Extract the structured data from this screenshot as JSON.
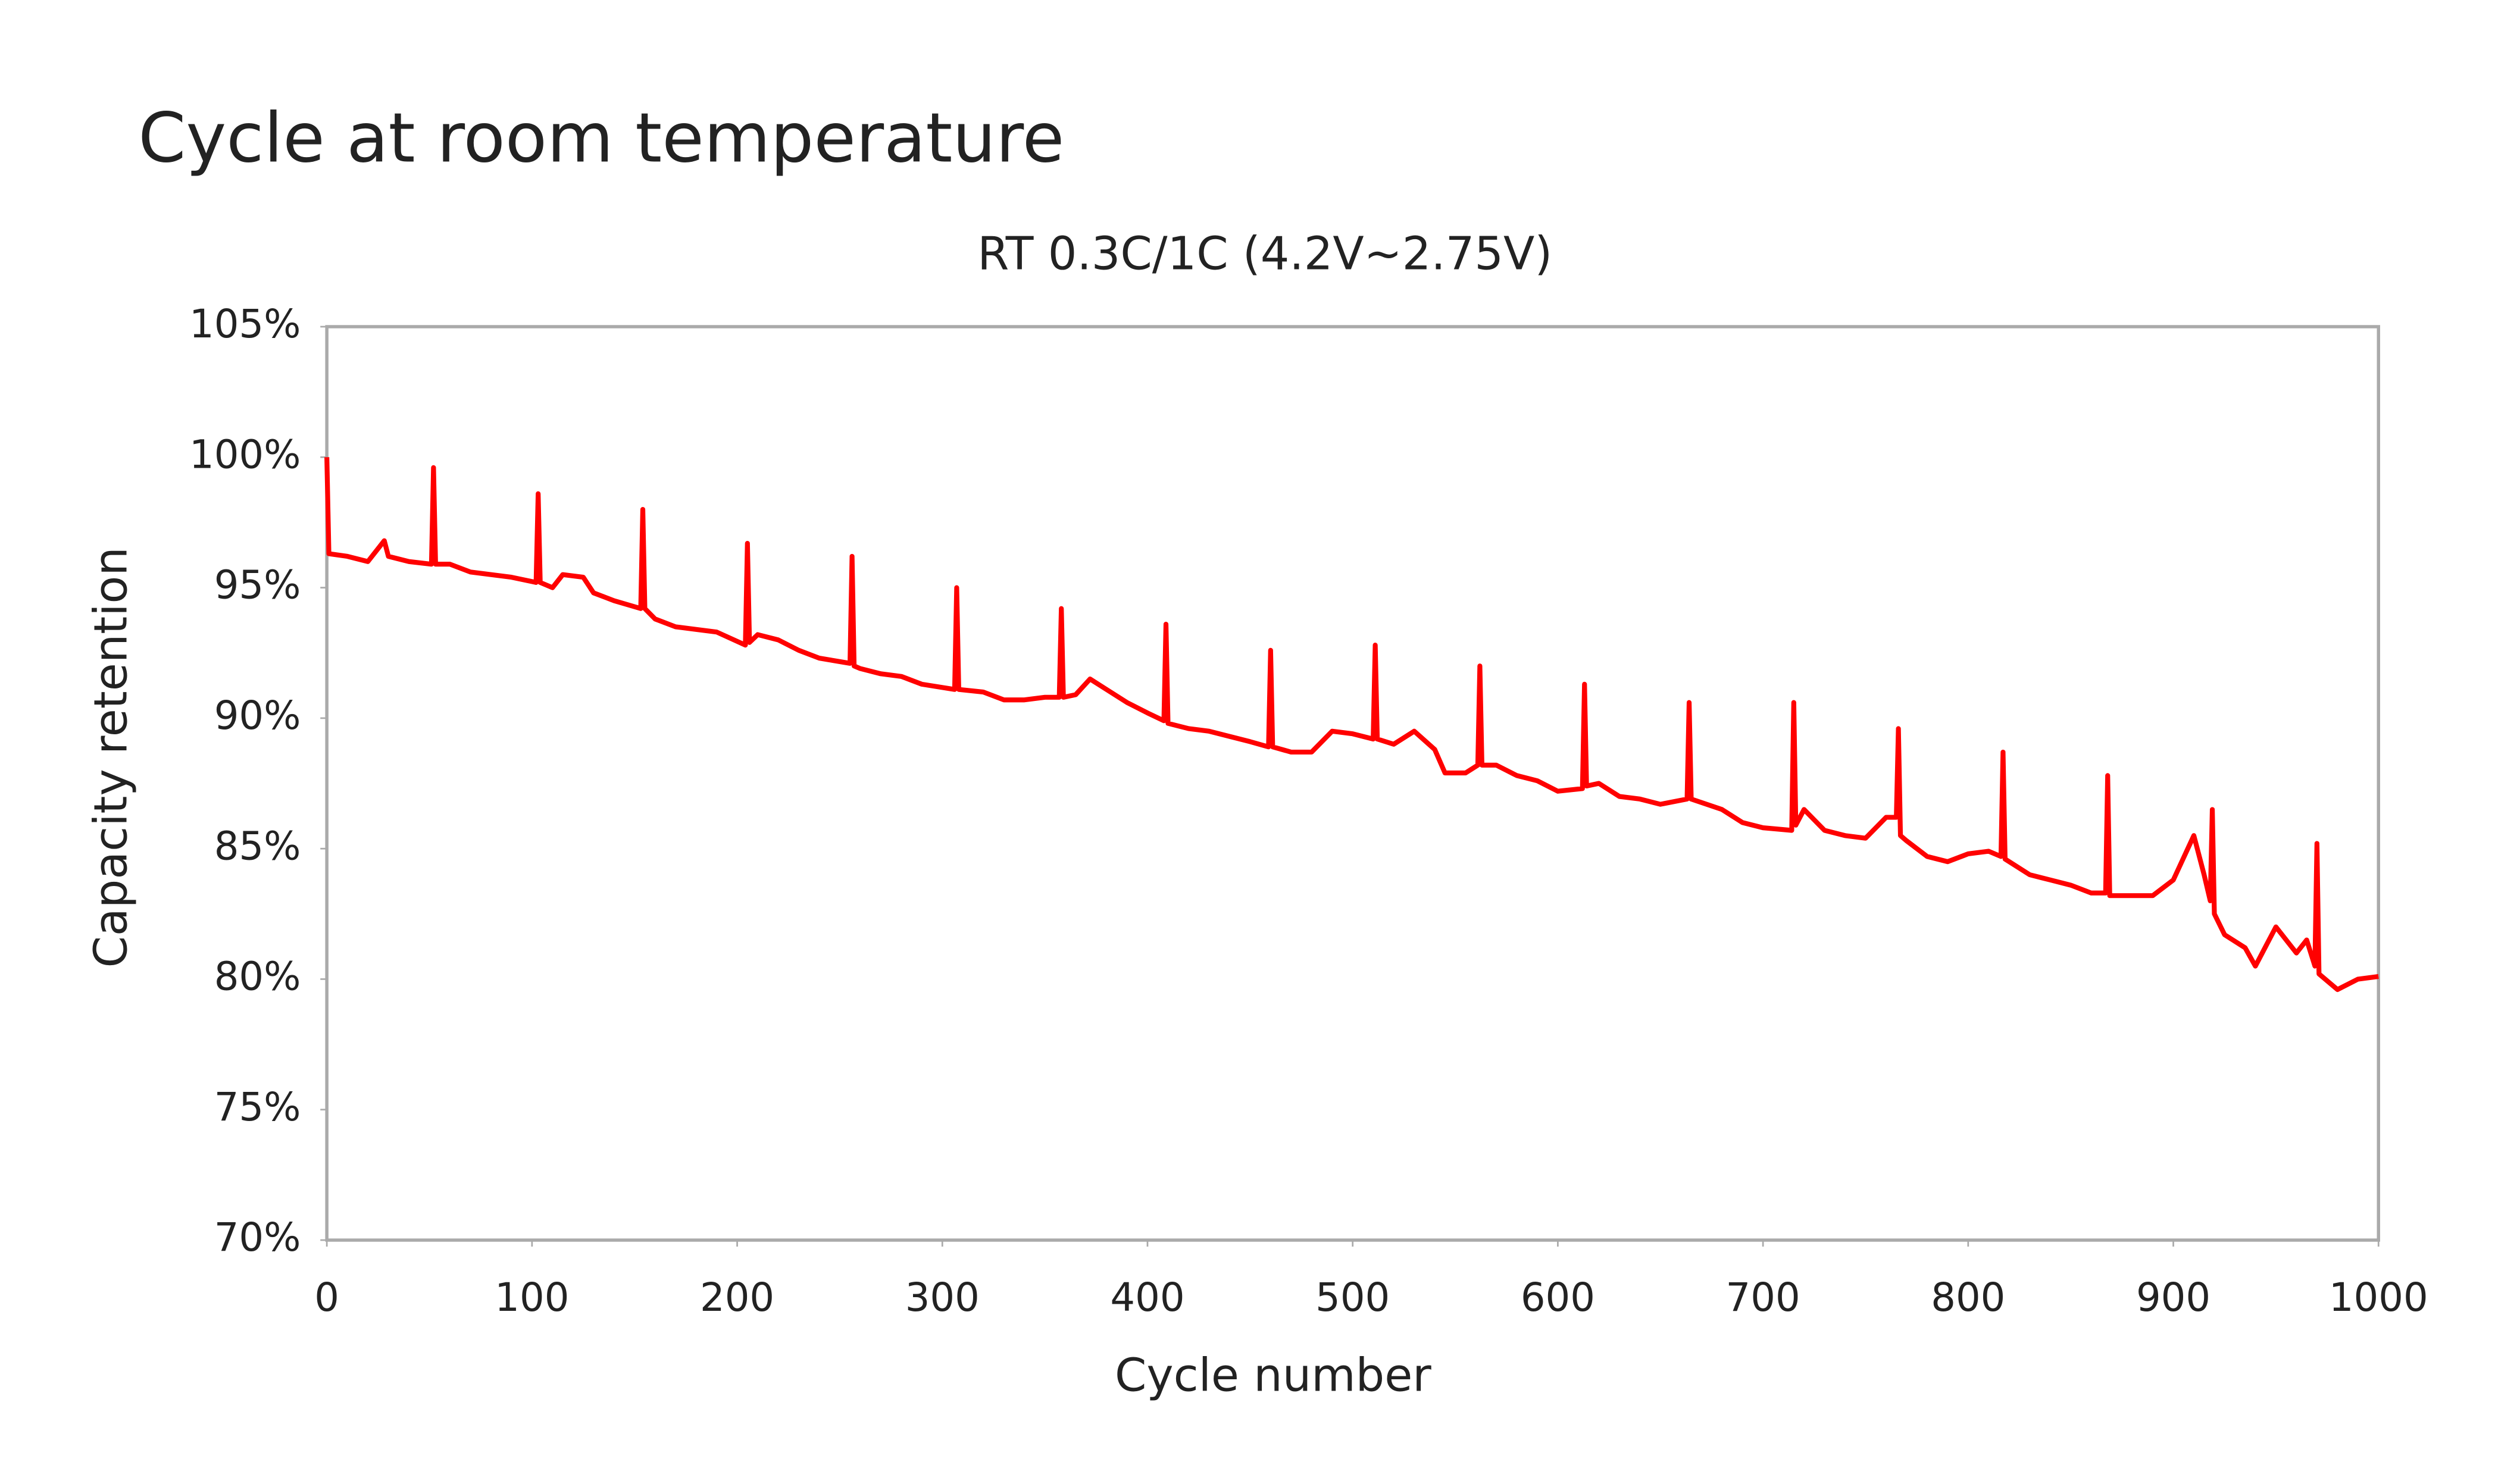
{
  "chart_data": {
    "type": "line",
    "title": "Cycle at room temperature",
    "subtitle": "RT 0.3C/1C (4.2V~2.75V)",
    "x_label": "Cycle number",
    "y_label": "Capacity retention",
    "xlim": [
      0,
      1000
    ],
    "xticks": [
      0,
      100,
      200,
      300,
      400,
      500,
      600,
      700,
      800,
      900,
      1000
    ],
    "ylim": [
      70,
      105
    ],
    "yticks": [
      {
        "value": 70,
        "label": "70%"
      },
      {
        "value": 75,
        "label": "75%"
      },
      {
        "value": 80,
        "label": "80%"
      },
      {
        "value": 85,
        "label": "85%"
      },
      {
        "value": 90,
        "label": "90%"
      },
      {
        "value": 95,
        "label": "95%"
      },
      {
        "value": 100,
        "label": "100%"
      },
      {
        "value": 105,
        "label": "105%"
      }
    ],
    "grid": false,
    "x": [
      0,
      1,
      10,
      20,
      28,
      30,
      40,
      51,
      52,
      53,
      60,
      70,
      80,
      90,
      102,
      103,
      104,
      110,
      115,
      125,
      130,
      140,
      153,
      154,
      155,
      160,
      170,
      180,
      190,
      204,
      205,
      206,
      210,
      220,
      230,
      240,
      255,
      256,
      257,
      260,
      270,
      280,
      290,
      306,
      307,
      308,
      320,
      330,
      340,
      350,
      357,
      358,
      359,
      365,
      372,
      380,
      390,
      400,
      408,
      409,
      410,
      420,
      430,
      440,
      450,
      459,
      460,
      461,
      470,
      480,
      490,
      500,
      510,
      511,
      512,
      520,
      530,
      540,
      545,
      555,
      561,
      562,
      563,
      570,
      580,
      590,
      600,
      612,
      613,
      614,
      620,
      630,
      640,
      650,
      663,
      664,
      665,
      680,
      690,
      700,
      714,
      715,
      716,
      720,
      730,
      740,
      750,
      760,
      765,
      766,
      767,
      770,
      780,
      790,
      800,
      810,
      816,
      817,
      818,
      830,
      840,
      850,
      860,
      867,
      868,
      869,
      890,
      900,
      910,
      915,
      918,
      919,
      920,
      925,
      935,
      940,
      950,
      960,
      965,
      969,
      970,
      971,
      980,
      990,
      1000
    ],
    "series": [
      {
        "color": "#ff0000",
        "values": [
          100,
          96.3,
          96.2,
          96.0,
          96.8,
          96.2,
          96.0,
          95.9,
          99.6,
          95.9,
          95.9,
          95.6,
          95.5,
          95.4,
          95.2,
          98.6,
          95.2,
          95.0,
          95.5,
          95.4,
          94.8,
          94.5,
          94.2,
          98.0,
          94.2,
          93.8,
          93.5,
          93.4,
          93.3,
          92.8,
          96.7,
          92.9,
          93.2,
          93.0,
          92.6,
          92.3,
          92.1,
          96.2,
          92.0,
          91.9,
          91.7,
          91.6,
          91.3,
          91.1,
          95.0,
          91.1,
          91.0,
          90.7,
          90.7,
          90.8,
          90.8,
          94.2,
          90.8,
          90.9,
          91.5,
          91.1,
          90.6,
          90.2,
          89.9,
          93.6,
          89.8,
          89.6,
          89.5,
          89.3,
          89.1,
          88.9,
          92.6,
          88.9,
          88.7,
          88.7,
          89.5,
          89.4,
          89.2,
          92.8,
          89.2,
          89.0,
          89.5,
          88.8,
          87.9,
          87.9,
          88.2,
          92.0,
          88.2,
          88.2,
          87.8,
          87.6,
          87.2,
          87.3,
          91.3,
          87.4,
          87.5,
          87.0,
          86.9,
          86.7,
          86.9,
          90.6,
          86.9,
          86.5,
          86.0,
          85.8,
          85.7,
          90.6,
          85.9,
          86.5,
          85.7,
          85.5,
          85.4,
          86.2,
          86.2,
          89.6,
          85.5,
          85.3,
          84.7,
          84.5,
          84.8,
          84.9,
          84.7,
          88.7,
          84.6,
          84.0,
          83.8,
          83.6,
          83.3,
          83.3,
          87.8,
          83.2,
          83.2,
          83.8,
          85.5,
          84.0,
          83.0,
          86.5,
          82.5,
          81.7,
          81.2,
          80.5,
          82.0,
          81.0,
          81.5,
          80.5,
          85.2,
          80.2,
          79.6,
          80.0,
          80.1
        ]
      }
    ]
  }
}
